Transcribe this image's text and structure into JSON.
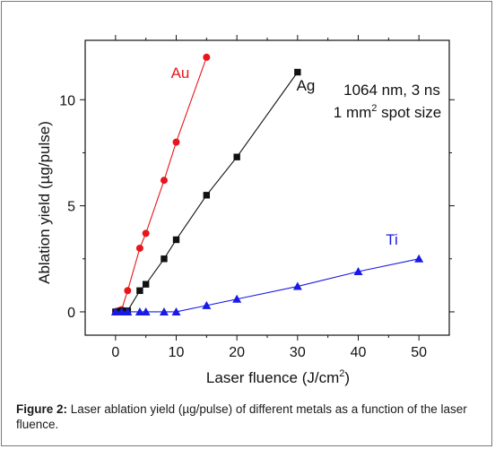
{
  "caption": {
    "label": "Figure 2:",
    "text": " Laser ablation yield (µg/pulse) of different metals as a function of the laser fluence."
  },
  "chart_data": {
    "type": "scatter",
    "xlabel": "Laser fluence (J/cm2)",
    "xlabel_main": "Laser fluence (J/cm",
    "xlabel_sup": "2",
    "xlabel_end": ")",
    "ylabel": "Ablation yield (µg/pulse)",
    "xlim": [
      -5,
      55
    ],
    "ylim": [
      -1.1,
      12.8
    ],
    "xticks": [
      0,
      10,
      20,
      30,
      40,
      50
    ],
    "xtick_labels": [
      "0",
      "10",
      "20",
      "30",
      "40",
      "50"
    ],
    "yticks": [
      0,
      5,
      10
    ],
    "ytick_labels": [
      "0",
      "5",
      "10"
    ],
    "grid": false,
    "annotation": {
      "line1": "1064 nm, 3 ns",
      "line2_main": "1 mm",
      "line2_sup": "2",
      "line2_end": " spot size"
    },
    "series": [
      {
        "name": "Au",
        "color": "#e8161b",
        "marker": "circle",
        "x": [
          0.5,
          1,
          2,
          4,
          5,
          8,
          10,
          15
        ],
        "y": [
          0.05,
          0.1,
          1.0,
          3.0,
          3.7,
          6.2,
          8.0,
          12.0
        ]
      },
      {
        "name": "Ag",
        "color": "#111111",
        "marker": "square",
        "x": [
          0,
          0.5,
          1,
          2,
          4,
          5,
          8,
          10,
          15,
          20,
          30
        ],
        "y": [
          0,
          0,
          0.05,
          0.05,
          1.0,
          1.3,
          2.5,
          3.4,
          5.5,
          7.3,
          11.3
        ]
      },
      {
        "name": "Ti",
        "color": "#1a1ae6",
        "marker": "triangle",
        "x": [
          0,
          1,
          2,
          4,
          5,
          8,
          10,
          15,
          20,
          30,
          40,
          50
        ],
        "y": [
          0,
          0,
          0,
          0,
          0,
          0,
          0,
          0.3,
          0.6,
          1.2,
          1.9,
          2.5
        ]
      }
    ]
  }
}
